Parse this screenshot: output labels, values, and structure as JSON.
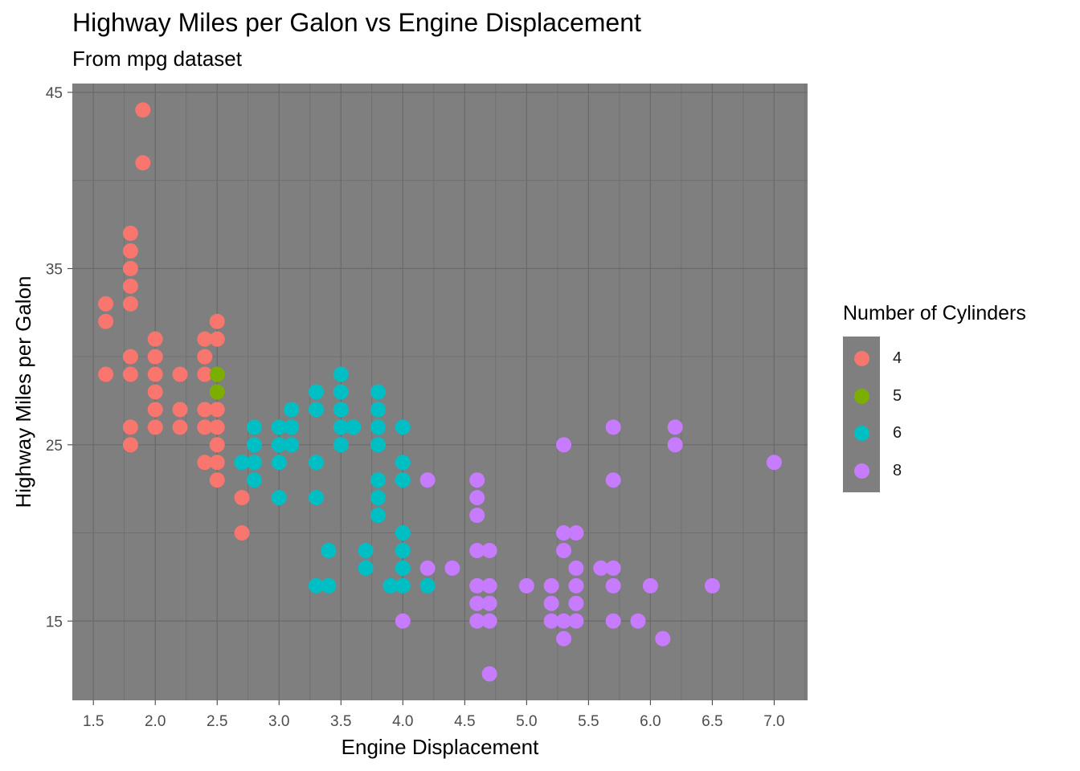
{
  "chart_data": {
    "type": "scatter",
    "title": "Highway Miles per Galon vs Engine Displacement",
    "subtitle": "From mpg dataset",
    "xlabel": "Engine Displacement",
    "ylabel": "Highway Miles per Galon",
    "xlim": [
      1.33,
      7.27
    ],
    "ylim": [
      10.5,
      45.5
    ],
    "x_ticks": [
      "1.5",
      "2.0",
      "2.5",
      "3.0",
      "3.5",
      "4.0",
      "4.5",
      "5.0",
      "5.5",
      "6.0",
      "6.5",
      "7.0"
    ],
    "y_ticks": [
      "15",
      "25",
      "35",
      "45"
    ],
    "grid": true,
    "panel_background": "#7f7f7f",
    "legend": {
      "title": "Number of Cylinders",
      "position": "right",
      "entries": [
        {
          "label": "4",
          "color": "#F8766D"
        },
        {
          "label": "5",
          "color": "#7CAE00"
        },
        {
          "label": "6",
          "color": "#00BFC4"
        },
        {
          "label": "8",
          "color": "#C77CFF"
        }
      ]
    },
    "series": [
      {
        "name": "4",
        "color": "#F8766D",
        "points": [
          [
            1.6,
            33
          ],
          [
            1.6,
            32
          ],
          [
            1.6,
            29
          ],
          [
            1.8,
            37
          ],
          [
            1.8,
            36
          ],
          [
            1.8,
            35
          ],
          [
            1.8,
            34
          ],
          [
            1.8,
            33
          ],
          [
            1.8,
            30
          ],
          [
            1.8,
            29
          ],
          [
            1.8,
            26
          ],
          [
            1.8,
            25
          ],
          [
            1.9,
            44
          ],
          [
            1.9,
            41
          ],
          [
            2.0,
            31
          ],
          [
            2.0,
            30
          ],
          [
            2.0,
            29
          ],
          [
            2.0,
            28
          ],
          [
            2.0,
            27
          ],
          [
            2.0,
            26
          ],
          [
            2.2,
            29
          ],
          [
            2.2,
            27
          ],
          [
            2.2,
            26
          ],
          [
            2.4,
            31
          ],
          [
            2.4,
            30
          ],
          [
            2.4,
            29
          ],
          [
            2.4,
            27
          ],
          [
            2.4,
            26
          ],
          [
            2.4,
            24
          ],
          [
            2.5,
            32
          ],
          [
            2.5,
            31
          ],
          [
            2.5,
            27
          ],
          [
            2.5,
            26
          ],
          [
            2.5,
            25
          ],
          [
            2.5,
            24
          ],
          [
            2.5,
            23
          ],
          [
            2.7,
            22
          ],
          [
            2.7,
            20
          ]
        ]
      },
      {
        "name": "5",
        "color": "#7CAE00",
        "points": [
          [
            2.5,
            29
          ],
          [
            2.5,
            28
          ]
        ]
      },
      {
        "name": "6",
        "color": "#00BFC4",
        "points": [
          [
            2.7,
            24
          ],
          [
            2.8,
            26
          ],
          [
            2.8,
            25
          ],
          [
            2.8,
            24
          ],
          [
            2.8,
            23
          ],
          [
            3.0,
            26
          ],
          [
            3.0,
            25
          ],
          [
            3.0,
            24
          ],
          [
            3.0,
            22
          ],
          [
            3.1,
            27
          ],
          [
            3.1,
            26
          ],
          [
            3.1,
            25
          ],
          [
            3.3,
            28
          ],
          [
            3.3,
            27
          ],
          [
            3.3,
            24
          ],
          [
            3.3,
            22
          ],
          [
            3.3,
            17
          ],
          [
            3.4,
            19
          ],
          [
            3.4,
            17
          ],
          [
            3.5,
            29
          ],
          [
            3.5,
            28
          ],
          [
            3.5,
            27
          ],
          [
            3.5,
            26
          ],
          [
            3.5,
            25
          ],
          [
            3.6,
            26
          ],
          [
            3.7,
            19
          ],
          [
            3.7,
            18
          ],
          [
            3.8,
            28
          ],
          [
            3.8,
            27
          ],
          [
            3.8,
            26
          ],
          [
            3.8,
            25
          ],
          [
            3.8,
            23
          ],
          [
            3.8,
            22
          ],
          [
            3.8,
            21
          ],
          [
            3.9,
            17
          ],
          [
            4.0,
            26
          ],
          [
            4.0,
            24
          ],
          [
            4.0,
            23
          ],
          [
            4.0,
            20
          ],
          [
            4.0,
            19
          ],
          [
            4.0,
            18
          ],
          [
            4.0,
            17
          ],
          [
            4.2,
            17
          ]
        ]
      },
      {
        "name": "8",
        "color": "#C77CFF",
        "points": [
          [
            4.0,
            15
          ],
          [
            4.2,
            23
          ],
          [
            4.2,
            18
          ],
          [
            4.4,
            18
          ],
          [
            4.6,
            23
          ],
          [
            4.6,
            22
          ],
          [
            4.6,
            21
          ],
          [
            4.6,
            19
          ],
          [
            4.6,
            17
          ],
          [
            4.6,
            16
          ],
          [
            4.6,
            15
          ],
          [
            4.7,
            19
          ],
          [
            4.7,
            17
          ],
          [
            4.7,
            16
          ],
          [
            4.7,
            15
          ],
          [
            4.7,
            12
          ],
          [
            5.0,
            17
          ],
          [
            5.2,
            17
          ],
          [
            5.2,
            16
          ],
          [
            5.2,
            15
          ],
          [
            5.3,
            25
          ],
          [
            5.3,
            20
          ],
          [
            5.3,
            19
          ],
          [
            5.3,
            15
          ],
          [
            5.3,
            14
          ],
          [
            5.4,
            20
          ],
          [
            5.4,
            18
          ],
          [
            5.4,
            17
          ],
          [
            5.4,
            16
          ],
          [
            5.4,
            15
          ],
          [
            5.6,
            18
          ],
          [
            5.7,
            26
          ],
          [
            5.7,
            23
          ],
          [
            5.7,
            18
          ],
          [
            5.7,
            17
          ],
          [
            5.7,
            15
          ],
          [
            5.9,
            15
          ],
          [
            6.0,
            17
          ],
          [
            6.1,
            14
          ],
          [
            6.2,
            26
          ],
          [
            6.2,
            25
          ],
          [
            6.5,
            17
          ],
          [
            7.0,
            24
          ]
        ]
      }
    ]
  }
}
